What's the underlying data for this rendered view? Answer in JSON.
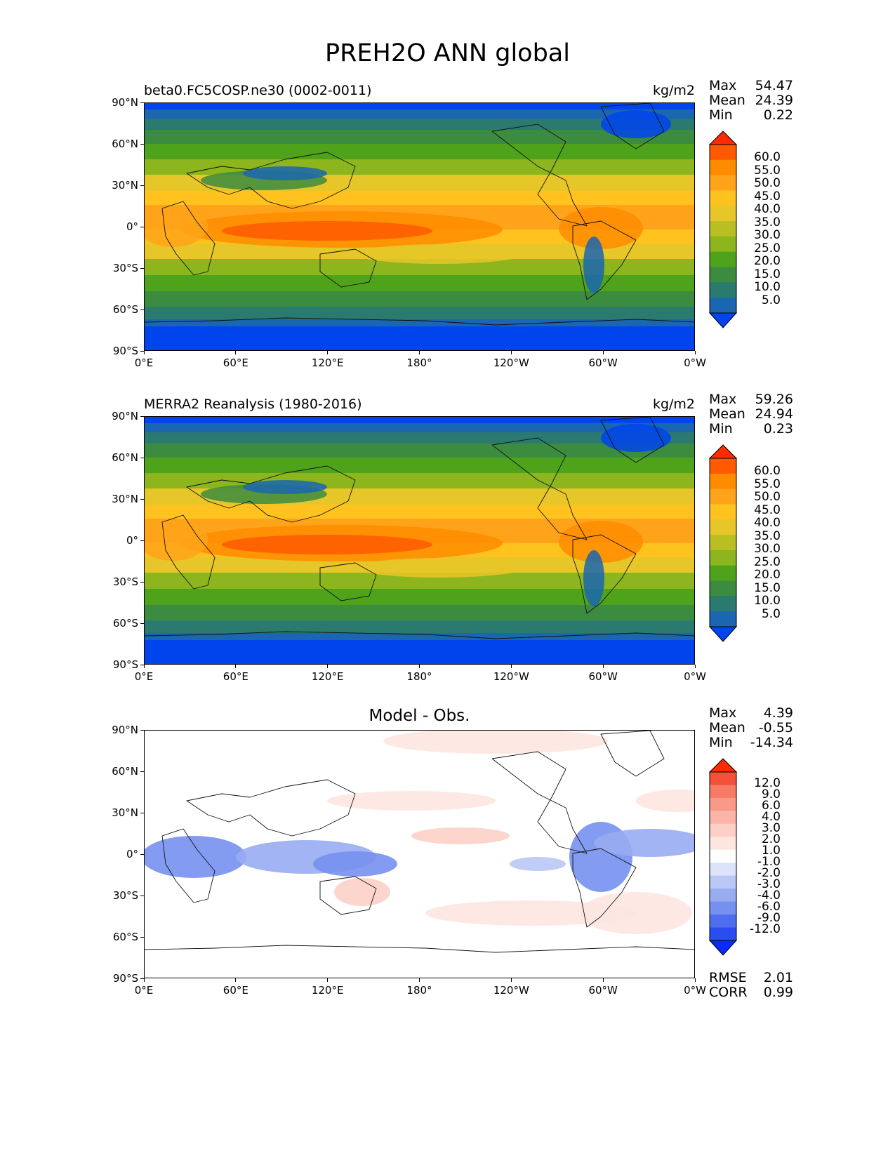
{
  "title": "PREH2O ANN global",
  "x_ticks": [
    "0°E",
    "60°E",
    "120°E",
    "180°",
    "120°W",
    "60°W",
    "0°W"
  ],
  "y_ticks": [
    "90°N",
    "60°N",
    "30°N",
    "0°",
    "30°S",
    "60°S",
    "90°S"
  ],
  "stat_labels": {
    "max": "Max",
    "mean": "Mean",
    "min": "Min",
    "rmse": "RMSE",
    "corr": "CORR"
  },
  "panels": [
    {
      "subtitle": "beta0.FC5COSP.ne30 (0002-0011)",
      "units": "kg/m2",
      "center_title": "",
      "stats": {
        "max": "54.47",
        "mean": "24.39",
        "min": "0.22"
      },
      "colorbar": {
        "labels": [
          "60.0",
          "55.0",
          "50.0",
          "45.0",
          "40.0",
          "35.0",
          "30.0",
          "25.0",
          "20.0",
          "15.0",
          "10.0",
          "5.0"
        ],
        "colors": [
          "#ff2a00",
          "#ff5a00",
          "#ff8c00",
          "#ffa41a",
          "#ffc21f",
          "#e6c628",
          "#b9bf22",
          "#8cb51e",
          "#4fa31a",
          "#3c8c40",
          "#2a7a70",
          "#1a66b0",
          "#0044ee"
        ]
      }
    },
    {
      "subtitle": "MERRA2 Reanalysis (1980-2016)",
      "units": "kg/m2",
      "center_title": "",
      "stats": {
        "max": "59.26",
        "mean": "24.94",
        "min": "0.23"
      },
      "colorbar": {
        "labels": [
          "60.0",
          "55.0",
          "50.0",
          "45.0",
          "40.0",
          "35.0",
          "30.0",
          "25.0",
          "20.0",
          "15.0",
          "10.0",
          "5.0"
        ],
        "colors": [
          "#ff2a00",
          "#ff5a00",
          "#ff8c00",
          "#ffa41a",
          "#ffc21f",
          "#e6c628",
          "#b9bf22",
          "#8cb51e",
          "#4fa31a",
          "#3c8c40",
          "#2a7a70",
          "#1a66b0",
          "#0044ee"
        ]
      }
    },
    {
      "subtitle": "",
      "units": "",
      "center_title": "Model - Obs.",
      "stats": {
        "max": "4.39",
        "mean": "-0.55",
        "min": "-14.34",
        "rmse": "2.01",
        "corr": "0.99"
      },
      "colorbar": {
        "labels": [
          "12.0",
          "9.0",
          "6.0",
          "4.0",
          "3.0",
          "2.0",
          "1.0",
          "-1.0",
          "-2.0",
          "-3.0",
          "-4.0",
          "-6.0",
          "-9.0",
          "-12.0"
        ],
        "colors": [
          "#ff2a00",
          "#f4513a",
          "#f77a66",
          "#f99a88",
          "#fbb5a8",
          "#fcd0c6",
          "#fde6e0",
          "#ffffff",
          "#dce3fb",
          "#bac8f6",
          "#98acf2",
          "#7590ee",
          "#4f6eee",
          "#2a4df0",
          "#0a2af5"
        ]
      }
    }
  ]
}
